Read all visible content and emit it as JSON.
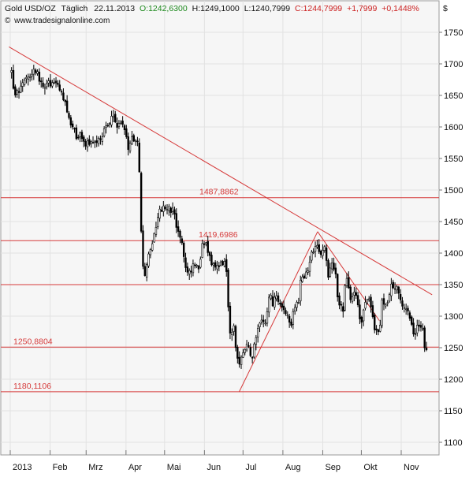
{
  "header": {
    "symbol": "Gold USD/OZ",
    "interval": "Täglich",
    "date": "22.11.2013",
    "open": "O:1242,6300",
    "high": "H:1249,1000",
    "low": "L:1240,7999",
    "close": "C:1244,7999",
    "change": "+1,7999",
    "change_pct": "+0,1448%",
    "currency": "$",
    "website": "www.tradesignalonline.com"
  },
  "colors": {
    "background": "#f6f6f6",
    "axis_bg": "#ffffff",
    "grid": "#e2e2e2",
    "level_line": "#d63a3a",
    "trend_line": "#d63a3a",
    "candle_body": "#000000",
    "close_text": "#cc2222",
    "open_text": "#1e8a1e"
  },
  "chart_data": {
    "type": "candlestick",
    "title": "Gold USD/OZ",
    "ylim": [
      1080,
      1770
    ],
    "y_ticks": [
      1100,
      1150,
      1200,
      1250,
      1300,
      1350,
      1400,
      1450,
      1500,
      1550,
      1600,
      1650,
      1700,
      1750
    ],
    "y_tick_labels": [
      "1100",
      "1150",
      "1200",
      "1250",
      "1300",
      "1350",
      "1400",
      "1450",
      "1500",
      "1550",
      "1600",
      "1650",
      "1700",
      "1750"
    ],
    "x_range": [
      "2013-01-01",
      "2013-11-25"
    ],
    "months": [
      {
        "date": "2013-01-01",
        "label": "2013"
      },
      {
        "date": "2013-02-01",
        "label": "Feb"
      },
      {
        "date": "2013-03-01",
        "label": "Mrz"
      },
      {
        "date": "2013-04-01",
        "label": "Apr"
      },
      {
        "date": "2013-05-01",
        "label": "Mai"
      },
      {
        "date": "2013-06-01",
        "label": "Jun"
      },
      {
        "date": "2013-07-01",
        "label": "Jul"
      },
      {
        "date": "2013-08-01",
        "label": "Aug"
      },
      {
        "date": "2013-09-01",
        "label": "Sep"
      },
      {
        "date": "2013-10-01",
        "label": "Okt"
      },
      {
        "date": "2013-11-01",
        "label": "Nov"
      }
    ],
    "grid": true,
    "horizontal_levels": [
      {
        "value": 1487.8862,
        "label": "1487,8862"
      },
      {
        "value": 1419.6986,
        "label": "1419,6986"
      },
      {
        "value": 1350,
        "label": ""
      },
      {
        "value": 1250.8804,
        "label": "1250,8804"
      },
      {
        "value": 1180.1106,
        "label": "1180,1106"
      }
    ],
    "trend_lines": [
      {
        "from": [
          "2012-12-31",
          1727
        ],
        "to": [
          "2013-11-25",
          1334
        ]
      },
      {
        "from": [
          "2013-06-28",
          1180
        ],
        "to": [
          "2013-08-28",
          1434
        ]
      },
      {
        "from": [
          "2013-08-28",
          1434
        ],
        "to": [
          "2013-10-15",
          1293
        ]
      }
    ],
    "closes": [
      [
        "2013-01-02",
        1687
      ],
      [
        "2013-01-04",
        1656
      ],
      [
        "2013-01-08",
        1656
      ],
      [
        "2013-01-10",
        1670
      ],
      [
        "2013-01-14",
        1684
      ],
      [
        "2013-01-16",
        1683
      ],
      [
        "2013-01-18",
        1688
      ],
      [
        "2013-01-22",
        1692
      ],
      [
        "2013-01-24",
        1670
      ],
      [
        "2013-01-28",
        1658
      ],
      [
        "2013-01-30",
        1677
      ],
      [
        "2013-02-01",
        1668
      ],
      [
        "2013-02-05",
        1674
      ],
      [
        "2013-02-07",
        1668
      ],
      [
        "2013-02-11",
        1648
      ],
      [
        "2013-02-13",
        1644
      ],
      [
        "2013-02-15",
        1610
      ],
      [
        "2013-02-19",
        1606
      ],
      [
        "2013-02-21",
        1575
      ],
      [
        "2013-02-25",
        1588
      ],
      [
        "2013-02-27",
        1578
      ],
      [
        "2013-03-01",
        1573
      ],
      [
        "2013-03-05",
        1575
      ],
      [
        "2013-03-07",
        1579
      ],
      [
        "2013-03-11",
        1575
      ],
      [
        "2013-03-13",
        1587
      ],
      [
        "2013-03-15",
        1593
      ],
      [
        "2013-03-19",
        1611
      ],
      [
        "2013-03-21",
        1613
      ],
      [
        "2013-03-25",
        1604
      ],
      [
        "2013-03-27",
        1605
      ],
      [
        "2013-04-01",
        1598
      ],
      [
        "2013-04-03",
        1553
      ],
      [
        "2013-04-05",
        1580
      ],
      [
        "2013-04-09",
        1586
      ],
      [
        "2013-04-11",
        1564
      ],
      [
        "2013-04-12",
        1476
      ],
      [
        "2013-04-15",
        1348
      ],
      [
        "2013-04-16",
        1368
      ],
      [
        "2013-04-18",
        1393
      ],
      [
        "2013-04-22",
        1423
      ],
      [
        "2013-04-24",
        1431
      ],
      [
        "2013-04-26",
        1466
      ],
      [
        "2013-04-30",
        1472
      ],
      [
        "2013-05-02",
        1466
      ],
      [
        "2013-05-06",
        1468
      ],
      [
        "2013-05-08",
        1473
      ],
      [
        "2013-05-10",
        1436
      ],
      [
        "2013-05-14",
        1425
      ],
      [
        "2013-05-16",
        1387
      ],
      [
        "2013-05-20",
        1365
      ],
      [
        "2013-05-22",
        1374
      ],
      [
        "2013-05-24",
        1386
      ],
      [
        "2013-05-28",
        1380
      ],
      [
        "2013-05-30",
        1411
      ],
      [
        "2013-06-03",
        1412
      ],
      [
        "2013-06-05",
        1398
      ],
      [
        "2013-06-07",
        1385
      ],
      [
        "2013-06-11",
        1378
      ],
      [
        "2013-06-13",
        1386
      ],
      [
        "2013-06-17",
        1383
      ],
      [
        "2013-06-19",
        1347
      ],
      [
        "2013-06-20",
        1278
      ],
      [
        "2013-06-24",
        1283
      ],
      [
        "2013-06-26",
        1229
      ],
      [
        "2013-06-28",
        1225
      ],
      [
        "2013-07-02",
        1242
      ],
      [
        "2013-07-04",
        1251
      ],
      [
        "2013-07-08",
        1237
      ],
      [
        "2013-07-10",
        1258
      ],
      [
        "2013-07-12",
        1280
      ],
      [
        "2013-07-16",
        1290
      ],
      [
        "2013-07-18",
        1278
      ],
      [
        "2013-07-22",
        1335
      ],
      [
        "2013-07-24",
        1320
      ],
      [
        "2013-07-26",
        1330
      ],
      [
        "2013-07-30",
        1325
      ],
      [
        "2013-08-01",
        1310
      ],
      [
        "2013-08-05",
        1303
      ],
      [
        "2013-08-07",
        1284
      ],
      [
        "2013-08-09",
        1312
      ],
      [
        "2013-08-13",
        1321
      ],
      [
        "2013-08-15",
        1364
      ],
      [
        "2013-08-19",
        1366
      ],
      [
        "2013-08-21",
        1370
      ],
      [
        "2013-08-23",
        1395
      ],
      [
        "2013-08-27",
        1420
      ],
      [
        "2013-08-28",
        1418
      ],
      [
        "2013-08-30",
        1396
      ],
      [
        "2013-09-03",
        1412
      ],
      [
        "2013-09-05",
        1367
      ],
      [
        "2013-09-09",
        1386
      ],
      [
        "2013-09-11",
        1366
      ],
      [
        "2013-09-13",
        1326
      ],
      [
        "2013-09-17",
        1310
      ],
      [
        "2013-09-19",
        1365
      ],
      [
        "2013-09-23",
        1323
      ],
      [
        "2013-09-25",
        1338
      ],
      [
        "2013-09-27",
        1338
      ],
      [
        "2013-10-01",
        1287
      ],
      [
        "2013-10-03",
        1316
      ],
      [
        "2013-10-07",
        1325
      ],
      [
        "2013-10-09",
        1307
      ],
      [
        "2013-10-11",
        1273
      ],
      [
        "2013-10-15",
        1273
      ],
      [
        "2013-10-17",
        1321
      ],
      [
        "2013-10-21",
        1315
      ],
      [
        "2013-10-23",
        1335
      ],
      [
        "2013-10-25",
        1351
      ],
      [
        "2013-10-29",
        1344
      ],
      [
        "2013-10-31",
        1324
      ],
      [
        "2013-11-04",
        1314
      ],
      [
        "2013-11-06",
        1318
      ],
      [
        "2013-11-08",
        1285
      ],
      [
        "2013-11-12",
        1270
      ],
      [
        "2013-11-14",
        1287
      ],
      [
        "2013-11-18",
        1273
      ],
      [
        "2013-11-20",
        1243
      ],
      [
        "2013-11-22",
        1245
      ]
    ]
  }
}
